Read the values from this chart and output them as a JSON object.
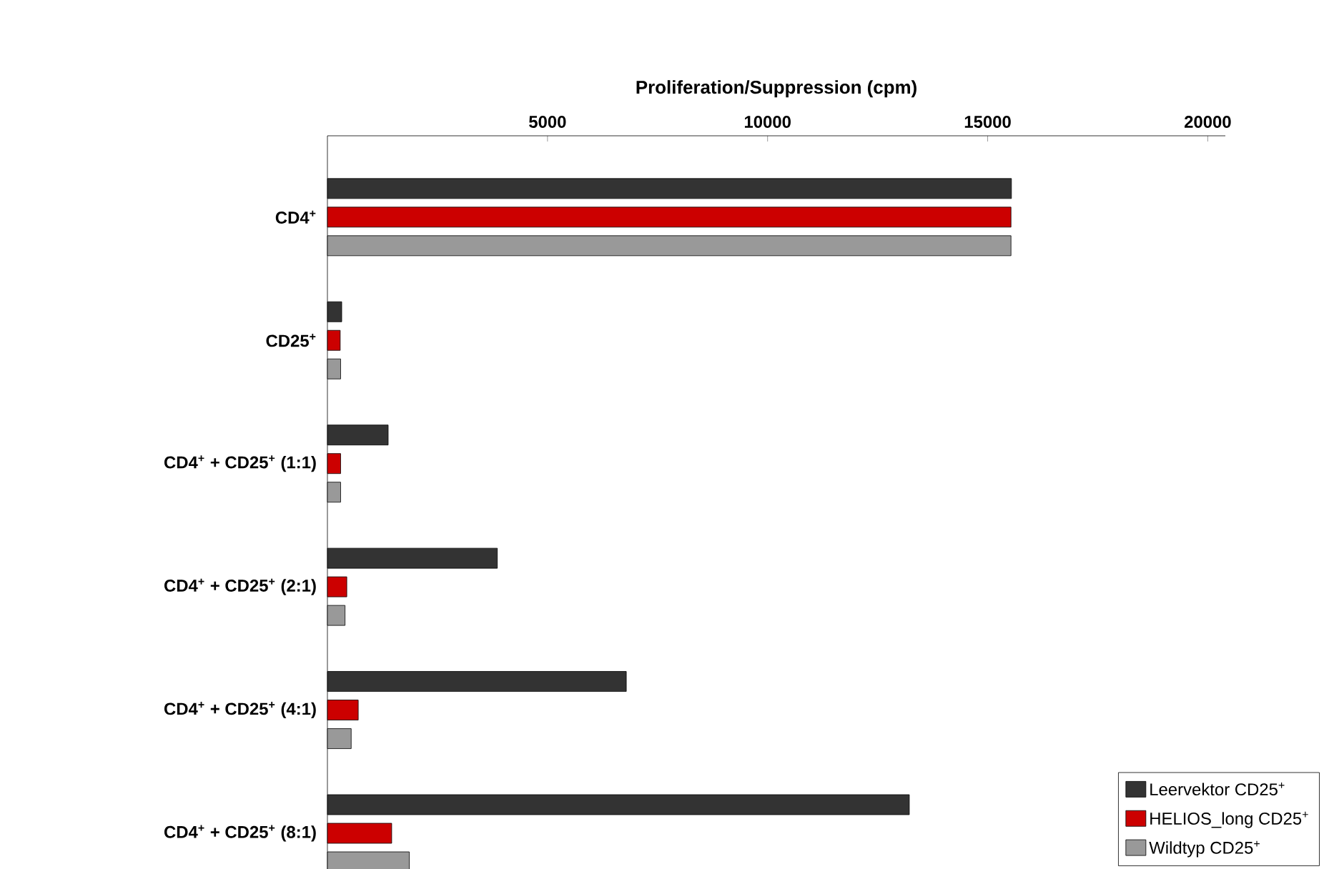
{
  "chart_data": {
    "type": "bar",
    "orientation": "horizontal",
    "xlabel": "Proliferation/Suppression (cpm)",
    "categories": [
      "CD4$^{+}$",
      "CD25$^{+}$",
      "CD4$^{+}$ + CD25$^{+}$ (1:1)",
      "CD4$^{+}$ + CD25$^{+}$ (2:1)",
      "CD4$^{+}$ + CD25$^{+}$ (4:1)",
      "CD4$^{+}$ + CD25$^{+}$ (8:1)"
    ],
    "series": [
      {
        "name": "Leervektor CD25$^{+}$",
        "color": "#333333",
        "values": [
          15540,
          325,
          1380,
          3860,
          6790,
          13220
        ]
      },
      {
        "name": "HELIOS_long CD25$^{+}$",
        "color": "#cc0000",
        "values": [
          15530,
          290,
          300,
          440,
          700,
          1460
        ]
      },
      {
        "name": "Wildtyp CD25$^{+}$",
        "color": "#999999",
        "values": [
          15530,
          300,
          300,
          400,
          540,
          1860
        ]
      }
    ],
    "xlim": [
      0,
      20400
    ],
    "xticks": [
      5000,
      10000,
      15000,
      20000
    ],
    "legend": "bottom right"
  }
}
